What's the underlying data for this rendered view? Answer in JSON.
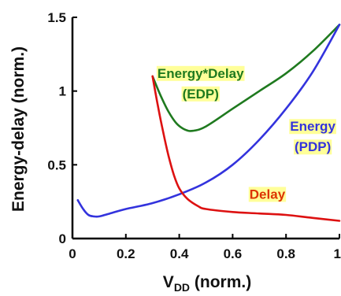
{
  "chart_data": {
    "type": "line",
    "xlabel": {
      "main": "V",
      "sub": "DD",
      "rest": " (norm.)"
    },
    "ylabel": "Energy-delay (norm.)",
    "xlim": [
      0,
      1
    ],
    "ylim": [
      0,
      1.5
    ],
    "xticks": [
      {
        "value": 0,
        "label": "0"
      },
      {
        "value": 0.2,
        "label": "0.2"
      },
      {
        "value": 0.4,
        "label": "0.4"
      },
      {
        "value": 0.6,
        "label": "0.6"
      },
      {
        "value": 0.8,
        "label": "0.8"
      },
      {
        "value": 1,
        "label": "1"
      }
    ],
    "yticks": [
      {
        "value": 0,
        "label": "0"
      },
      {
        "value": 0.5,
        "label": "0.5"
      },
      {
        "value": 1,
        "label": "1"
      },
      {
        "value": 1.5,
        "label": "1.5"
      }
    ],
    "grid": false,
    "series": [
      {
        "key": "edp",
        "color": "#1f7a1f",
        "x": [
          0.3,
          0.33,
          0.36,
          0.39,
          0.42,
          0.45,
          0.5,
          0.6,
          0.7,
          0.8,
          0.9,
          1.0
        ],
        "y": [
          1.1,
          0.97,
          0.86,
          0.78,
          0.74,
          0.73,
          0.76,
          0.88,
          1.0,
          1.12,
          1.27,
          1.45
        ]
      },
      {
        "key": "energy",
        "color": "#3333dd",
        "x": [
          0.02,
          0.04,
          0.06,
          0.08,
          0.1,
          0.14,
          0.2,
          0.3,
          0.4,
          0.5,
          0.6,
          0.7,
          0.8,
          0.9,
          1.0
        ],
        "y": [
          0.26,
          0.2,
          0.16,
          0.15,
          0.15,
          0.17,
          0.2,
          0.24,
          0.3,
          0.38,
          0.5,
          0.67,
          0.88,
          1.13,
          1.45
        ]
      },
      {
        "key": "delay",
        "color": "#dd1111",
        "x": [
          0.3,
          0.32,
          0.34,
          0.36,
          0.38,
          0.4,
          0.43,
          0.47,
          0.5,
          0.6,
          0.7,
          0.8,
          0.9,
          1.0
        ],
        "y": [
          1.1,
          0.9,
          0.72,
          0.56,
          0.43,
          0.34,
          0.27,
          0.22,
          0.2,
          0.18,
          0.17,
          0.16,
          0.14,
          0.12
        ]
      }
    ],
    "annotations": [
      {
        "key": "edp",
        "lines": [
          "Energy*Delay",
          "(EDP)"
        ],
        "color": "#1f7a1f",
        "highlight": "#ffff99",
        "at": [
          0.48,
          1.09
        ]
      },
      {
        "key": "energy",
        "lines": [
          "Energy",
          "(PDP)"
        ],
        "color": "#3333dd",
        "highlight": "#ffff99",
        "at": [
          0.9,
          0.73
        ]
      },
      {
        "key": "delay",
        "lines": [
          "Delay"
        ],
        "color": "#dd3300",
        "highlight": "#ffff99",
        "at": [
          0.73,
          0.27
        ]
      }
    ]
  }
}
